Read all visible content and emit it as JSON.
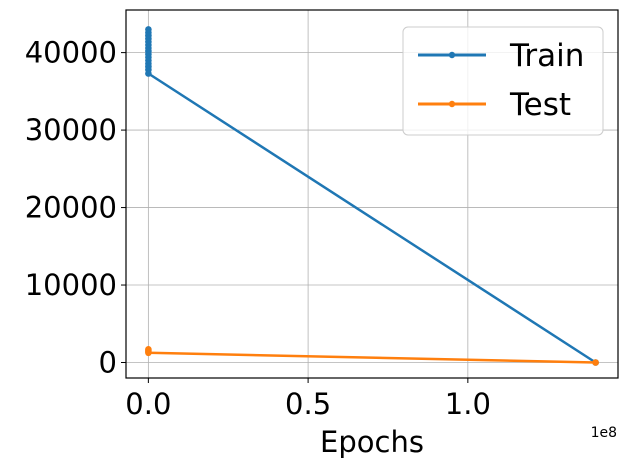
{
  "chart_data": {
    "type": "line",
    "title": "",
    "xlabel": "Epochs",
    "ylabel": "",
    "x_offset_label": "1e8",
    "xlim": [
      -7000000,
      147000000
    ],
    "ylim": [
      -2000,
      45500
    ],
    "xticks": [
      {
        "value": 0,
        "label": "0.0"
      },
      {
        "value": 50000000,
        "label": "0.5"
      },
      {
        "value": 100000000,
        "label": "1.0"
      }
    ],
    "yticks": [
      {
        "value": 0,
        "label": "0"
      },
      {
        "value": 10000,
        "label": "10000"
      },
      {
        "value": 20000,
        "label": "20000"
      },
      {
        "value": 30000,
        "label": "30000"
      },
      {
        "value": 40000,
        "label": "40000"
      }
    ],
    "grid": true,
    "legend_position": "top-right",
    "series": [
      {
        "name": "Train",
        "color": "#1f77b4",
        "x": [
          0,
          0,
          0,
          0,
          0,
          0,
          0,
          0,
          0,
          0,
          0,
          0,
          0,
          0,
          0,
          140000000
        ],
        "y": [
          43000,
          42600,
          42200,
          41800,
          41400,
          41000,
          40600,
          40200,
          39800,
          39400,
          39000,
          38600,
          38200,
          37800,
          37300,
          0
        ]
      },
      {
        "name": "Test",
        "color": "#ff7f0e",
        "x": [
          0,
          0,
          0,
          0,
          140000000
        ],
        "y": [
          1700,
          1550,
          1400,
          1250,
          0
        ]
      }
    ]
  }
}
